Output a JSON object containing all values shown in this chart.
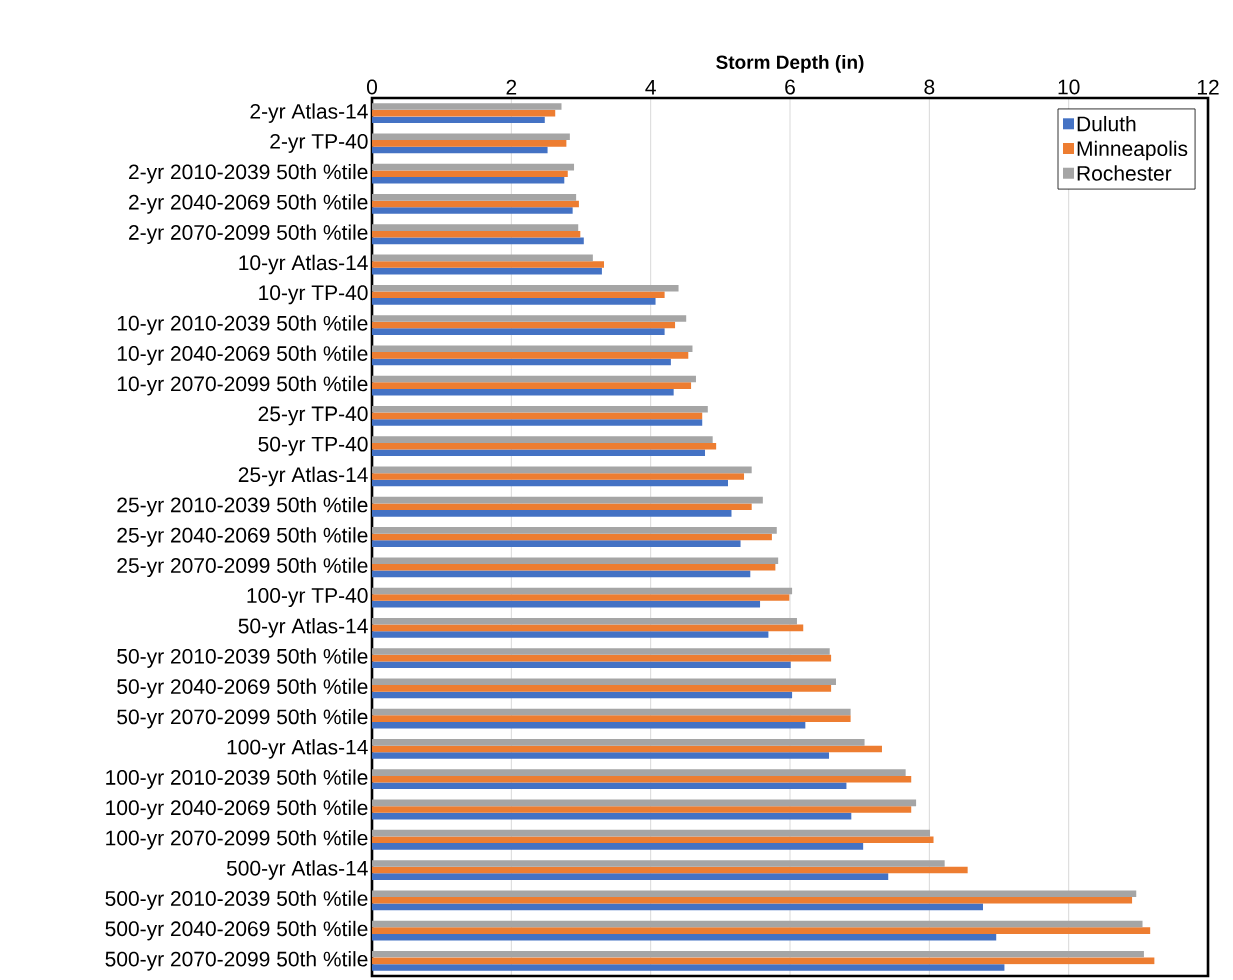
{
  "chart_data": {
    "type": "bar",
    "orientation": "horizontal",
    "xlabel": "Storm Depth (in)",
    "categories": [
      "2-yr Atlas-14",
      "2-yr TP-40",
      "2-yr 2010-2039 50th %tile",
      "2-yr 2040-2069 50th %tile",
      "2-yr 2070-2099 50th %tile",
      "10-yr Atlas-14",
      "10-yr TP-40",
      "10-yr 2010-2039 50th %tile",
      "10-yr 2040-2069 50th %tile",
      "10-yr 2070-2099 50th %tile",
      "25-yr TP-40",
      "50-yr TP-40",
      "25-yr Atlas-14",
      "25-yr 2010-2039 50th %tile",
      "25-yr 2040-2069 50th %tile",
      "25-yr 2070-2099 50th %tile",
      "100-yr TP-40",
      "50-yr Atlas-14",
      "50-yr 2010-2039 50th %tile",
      "50-yr 2040-2069 50th %tile",
      "50-yr 2070-2099 50th %tile",
      "100-yr Atlas-14",
      "100-yr 2010-2039 50th %tile",
      "100-yr 2040-2069 50th %tile",
      "100-yr 2070-2099 50th %tile",
      "500-yr Atlas-14",
      "500-yr 2010-2039 50th %tile",
      "500-yr 2040-2069 50th %tile",
      "500-yr 2070-2099 50th %tile"
    ],
    "series": [
      {
        "name": "Duluth",
        "color": "#4472c4",
        "values": [
          2.48,
          2.52,
          2.76,
          2.88,
          3.04,
          3.3,
          4.07,
          4.2,
          4.29,
          4.33,
          4.74,
          4.78,
          5.11,
          5.16,
          5.29,
          5.43,
          5.57,
          5.69,
          6.01,
          6.03,
          6.22,
          6.56,
          6.81,
          6.88,
          7.05,
          7.41,
          8.77,
          8.96,
          9.08
        ]
      },
      {
        "name": "Minneapolis",
        "color": "#ed7d31",
        "values": [
          2.63,
          2.79,
          2.81,
          2.97,
          2.99,
          3.33,
          4.2,
          4.35,
          4.54,
          4.58,
          4.74,
          4.94,
          5.34,
          5.45,
          5.74,
          5.79,
          5.99,
          6.19,
          6.59,
          6.59,
          6.87,
          7.32,
          7.74,
          7.74,
          8.06,
          8.55,
          10.91,
          11.17,
          11.23
        ]
      },
      {
        "name": "Rochester",
        "color": "#a5a5a5",
        "values": [
          2.72,
          2.84,
          2.9,
          2.93,
          2.96,
          3.17,
          4.4,
          4.51,
          4.6,
          4.65,
          4.82,
          4.89,
          5.45,
          5.61,
          5.81,
          5.83,
          6.03,
          6.1,
          6.57,
          6.66,
          6.87,
          7.07,
          7.66,
          7.81,
          8.01,
          8.22,
          10.97,
          11.06,
          11.08
        ]
      }
    ],
    "xlim": [
      0,
      12
    ],
    "xticks": [
      0,
      2,
      4,
      6,
      8,
      10,
      12
    ],
    "grid": "x",
    "legend": "top right"
  }
}
